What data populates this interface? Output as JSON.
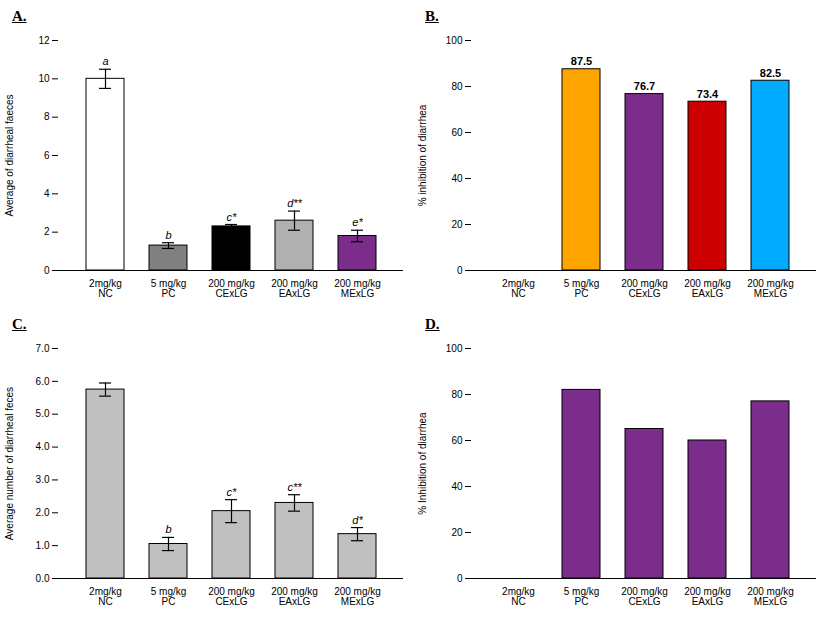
{
  "chart_data": [
    {
      "type": "bar",
      "title": "A.",
      "ylabel": "Average of diarrheal faeces",
      "categories": [
        "2mg/kg\nNC",
        "5 mg/kg\nPC",
        "200 mg/kg\nCExLG",
        "200 mg/kg\nEAxLG",
        "200 mg/kg\nMExLG"
      ],
      "values": [
        10.0,
        1.3,
        2.3,
        2.6,
        1.8
      ],
      "errors": [
        0.5,
        0.15,
        0.1,
        0.5,
        0.3
      ],
      "colors": [
        "white",
        "#808080",
        "black",
        "#b0b0b0",
        "#7B2D8B"
      ],
      "annotations": [
        "a",
        "b",
        "c*",
        "d**",
        "e*"
      ],
      "ylim": [
        0,
        12
      ],
      "yticks": [
        0,
        2,
        4,
        6,
        8,
        10,
        12
      ]
    },
    {
      "type": "bar",
      "title": "B.",
      "ylabel": "% inhibition of diarrhea",
      "categories": [
        "2mg/kg\nNC",
        "5 mg/kg\nPC",
        "200 mg/kg\nCExLG",
        "200 mg/kg\nEAxLG",
        "200 mg/kg\nMExLG"
      ],
      "values": [
        0,
        87.5,
        76.7,
        73.4,
        82.5
      ],
      "colors": [
        "black",
        "#FFA500",
        "#7B2D8B",
        "#CC0000",
        "#00AAFF"
      ],
      "data_labels": true,
      "value_labels": [
        null,
        "87.5",
        "76.7",
        "73.4",
        "82.5"
      ],
      "ylim": [
        0,
        100
      ],
      "yticks": [
        0,
        20,
        40,
        60,
        80,
        100
      ]
    },
    {
      "type": "bar",
      "title": "C.",
      "ylabel": "Average number of diarrheal feces",
      "categories": [
        "2mg/kg\nNC",
        "5 mg/kg\nPC",
        "200 mg/kg\nCExLG",
        "200 mg/kg\nEAxLG",
        "200 mg/kg\nMExLG"
      ],
      "values": [
        5.75,
        1.05,
        2.05,
        2.3,
        1.35
      ],
      "errors": [
        0.2,
        0.2,
        0.35,
        0.25,
        0.2
      ],
      "color": "#C0C0C0",
      "annotations": [
        null,
        "b",
        "c*",
        "c**",
        "d*"
      ],
      "ylim": [
        0,
        7
      ],
      "yticks": [
        0,
        1,
        2,
        3,
        4,
        5,
        6,
        7
      ]
    },
    {
      "type": "bar",
      "title": "D.",
      "ylabel": "% Inhibition of diarrhea",
      "categories": [
        "2mg/kg\nNC",
        "5 mg/kg\nPC",
        "200 mg/kg\nCExLG",
        "200 mg/kg\nEAxLG",
        "200 mg/kg\nMExLG"
      ],
      "values": [
        0,
        82,
        65,
        60,
        77
      ],
      "colors": [
        "black",
        "#7B2D8B",
        "#7B2D8B",
        "#7B2D8B",
        "#7B2D8B"
      ],
      "ylim": [
        0,
        100
      ],
      "yticks": [
        0,
        20,
        40,
        60,
        80,
        100
      ]
    }
  ]
}
